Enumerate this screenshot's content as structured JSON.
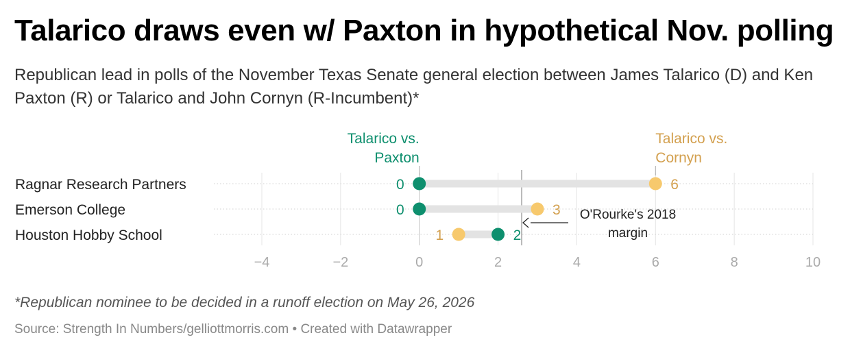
{
  "title": "Talarico draws even w/ Paxton in hypothetical Nov. polling",
  "subtitle": "Republican lead in polls of the November Texas Senate general election between James Talarico (D) and Ken Paxton (R) or Talarico and John Cornyn (R-Incumbent)*",
  "footnote": "*Republican nominee to be decided in a runoff election on May 26, 2026",
  "source": "Source: Strength In Numbers/gelliottmorris.com",
  "credit": "Created with Datawrapper",
  "separator": "•",
  "colors": {
    "paxton": "#0e8f6e",
    "cornyn": "#f7c96d",
    "cornyn_text": "#d3a04f",
    "tick": "#aaaaaa"
  },
  "chart_data": {
    "type": "dot-range",
    "title": "Talarico draws even w/ Paxton in hypothetical Nov. polling",
    "xlim": [
      -4,
      10
    ],
    "xticks": [
      -4,
      -2,
      0,
      2,
      4,
      6,
      8,
      10
    ],
    "xtick_labels": [
      "−4",
      "−2",
      "0",
      "2",
      "4",
      "6",
      "8",
      "10"
    ],
    "grid": true,
    "legend_placement": "top",
    "categories": [
      "Ragnar Research Partners",
      "Emerson College",
      "Houston Hobby School"
    ],
    "series": [
      {
        "name": "Talarico vs. Paxton",
        "label_lines": [
          "Talarico vs.",
          "Paxton"
        ],
        "values": [
          0,
          0,
          2
        ]
      },
      {
        "name": "Talarico vs. Cornyn",
        "label_lines": [
          "Talarico vs.",
          "Cornyn"
        ],
        "values": [
          6,
          3,
          1
        ]
      }
    ],
    "reference_line": {
      "value": 2.6,
      "label_lines": [
        "O'Rourke's 2018",
        "margin"
      ]
    }
  }
}
